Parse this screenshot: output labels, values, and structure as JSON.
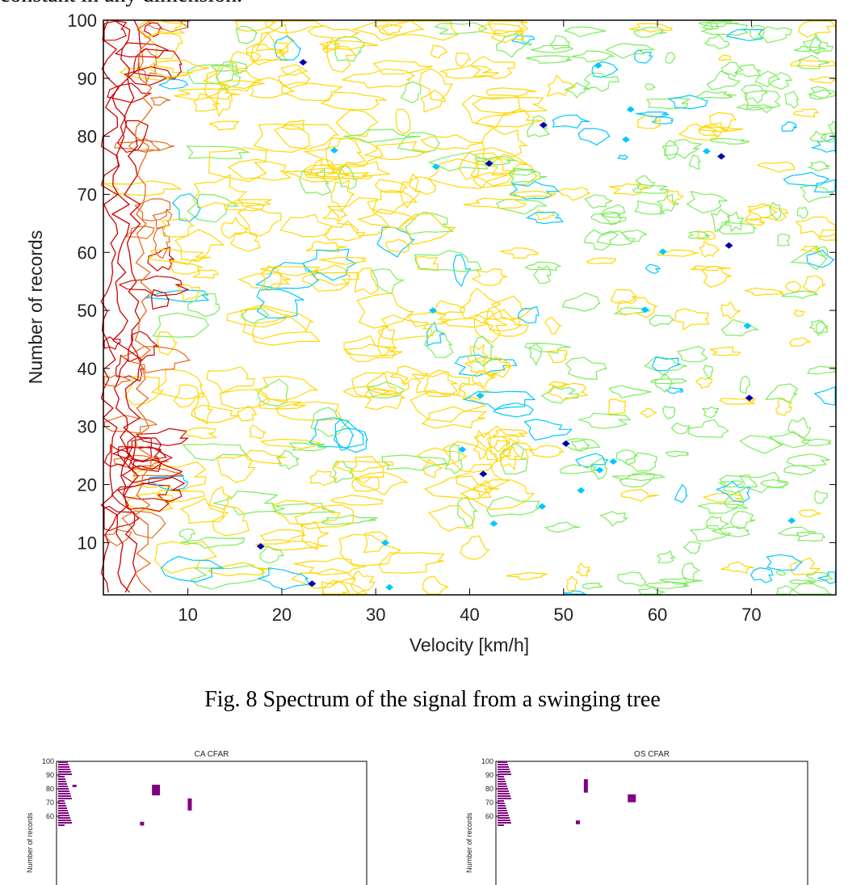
{
  "intro_text": "constant in any dimension.",
  "figure": {
    "caption": "Fig. 8 Spectrum of the signal from a swinging tree"
  },
  "chart_data": [
    {
      "type": "heatmap",
      "subtype": "contour",
      "title": "",
      "xlabel": "Velocity [km/h]",
      "ylabel": "Number of records",
      "xlim": [
        1,
        79
      ],
      "ylim": [
        1,
        100
      ],
      "xticks": [
        10,
        20,
        30,
        40,
        50,
        60,
        70
      ],
      "yticks": [
        10,
        20,
        30,
        40,
        50,
        60,
        70,
        80,
        90,
        100
      ],
      "contour_colors": [
        "#cc0000",
        "#e86a1c",
        "#ffd700",
        "#7cec5c",
        "#00c8ff",
        "#0000aa"
      ],
      "notes": "Red/orange contours concentrated at low velocity (<8 km/h); yellow contours dominate 8-45 km/h; green contours dominate above 45 km/h; scattered cyan/blue peaks."
    },
    {
      "type": "scatter",
      "title": "CA CFAR",
      "ylabel": "Number of records",
      "yticks": [
        60,
        70,
        80,
        90,
        100
      ],
      "marker_color": "#800080",
      "detections": [
        {
          "x": [
            1,
            3
          ],
          "y": [
            55,
            100
          ]
        },
        {
          "x": [
            5,
            5
          ],
          "y": [
            83,
            83
          ]
        },
        {
          "x": [
            25,
            26
          ],
          "y": [
            77,
            83
          ]
        },
        {
          "x": [
            34,
            34
          ],
          "y": [
            66,
            73
          ]
        },
        {
          "x": [
            22,
            22
          ],
          "y": [
            55,
            56
          ]
        }
      ]
    },
    {
      "type": "scatter",
      "title": "OS CFAR",
      "ylabel": "Number of records",
      "yticks": [
        60,
        70,
        80,
        90,
        100
      ],
      "marker_color": "#800080",
      "detections": [
        {
          "x": [
            1,
            3
          ],
          "y": [
            55,
            100
          ]
        },
        {
          "x": [
            23,
            23
          ],
          "y": [
            79,
            87
          ]
        },
        {
          "x": [
            34,
            35
          ],
          "y": [
            72,
            76
          ]
        },
        {
          "x": [
            21,
            21
          ],
          "y": [
            56,
            57
          ]
        }
      ]
    }
  ]
}
